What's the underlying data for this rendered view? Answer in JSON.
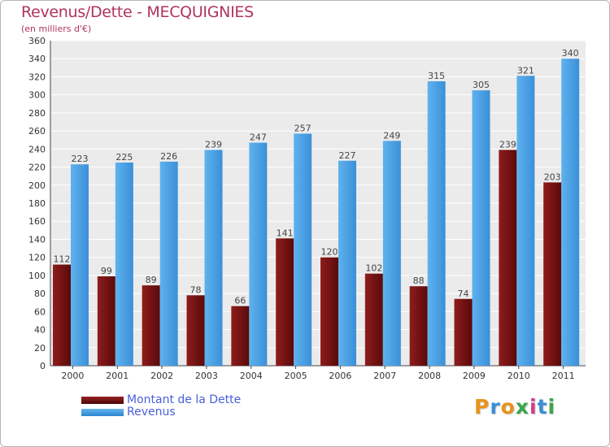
{
  "chart_data": {
    "type": "bar",
    "title": "Revenus/Dette - MECQUIGNIES",
    "subtitle": "(en milliers d'€)",
    "categories": [
      "2000",
      "2001",
      "2002",
      "2003",
      "2004",
      "2005",
      "2006",
      "2007",
      "2008",
      "2009",
      "2010",
      "2011"
    ],
    "series": [
      {
        "name": "Montant de la Dette",
        "values": [
          112,
          99,
          89,
          78,
          66,
          141,
          120,
          102,
          88,
          74,
          239,
          203
        ],
        "color": "#7a1414"
      },
      {
        "name": "Revenus",
        "values": [
          223,
          225,
          226,
          239,
          247,
          257,
          227,
          249,
          315,
          305,
          321,
          340
        ],
        "color": "#3d9de3"
      }
    ],
    "ylim": [
      0,
      360
    ],
    "yticks": [
      0,
      20,
      40,
      60,
      80,
      100,
      120,
      140,
      160,
      180,
      200,
      220,
      240,
      260,
      280,
      300,
      320,
      340,
      360
    ],
    "grid": true,
    "legend": "bottom-left"
  },
  "brand": {
    "letters": [
      "P",
      "r",
      "o",
      "x",
      "i",
      "t",
      "i"
    ],
    "colors": [
      "#e8931a",
      "#3a8fd6",
      "#e8931a",
      "#39a64a",
      "#d63a8a",
      "#3a8fd6",
      "#39a64a"
    ]
  }
}
